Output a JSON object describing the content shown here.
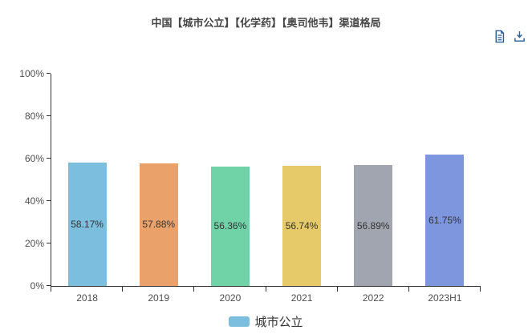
{
  "header": {
    "title": "中国【城市公立】【化学药】【奥司他韦】渠道格局",
    "toolbox": {
      "icons": [
        "data-view-icon",
        "save-image-icon"
      ],
      "icon_color": "#2b5e97"
    }
  },
  "chart_data": {
    "type": "bar",
    "title": "中国【城市公立】【化学药】【奥司他韦】渠道格局",
    "categories": [
      "2018",
      "2019",
      "2020",
      "2021",
      "2022",
      "2023H1"
    ],
    "series": [
      {
        "name": "城市公立",
        "values": [
          58.17,
          57.88,
          56.36,
          56.74,
          56.89,
          61.75
        ],
        "value_labels": [
          "58.17%",
          "57.88%",
          "56.36%",
          "56.74%",
          "56.89%",
          "61.75%"
        ]
      }
    ],
    "bar_colors": [
      "#7cbedd",
      "#eba26a",
      "#70d2a7",
      "#e6c968",
      "#a1a5af",
      "#7d96dd"
    ],
    "label_position": "inside-center",
    "xlabel": "",
    "ylabel": "",
    "ylim": [
      0,
      100
    ],
    "y_ticks": [
      {
        "label": "0%",
        "value": 0
      },
      {
        "label": "20%",
        "value": 20
      },
      {
        "label": "40%",
        "value": 40
      },
      {
        "label": "60%",
        "value": 60
      },
      {
        "label": "80%",
        "value": 80
      },
      {
        "label": "100%",
        "value": 100
      }
    ],
    "grid": false,
    "legend": {
      "position": "bottom-center",
      "items": [
        {
          "label": "城市公立",
          "color": "#7cbedd"
        }
      ]
    }
  }
}
